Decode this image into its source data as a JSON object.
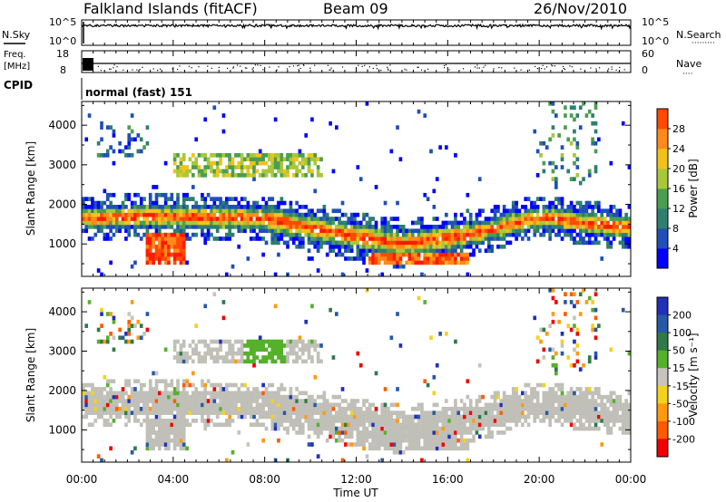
{
  "header": {
    "station": "Falkland Islands (fitACF)",
    "beam": "Beam 09",
    "date": "26/Nov/2010"
  },
  "strips": {
    "nsky_label": "N.Sky",
    "nsearch_label": "N.Search",
    "nsearch_dots": "·········",
    "freq_label": "Freq.",
    "freq_unit": "[MHz]",
    "nave_label": "Nave",
    "nave_dots": "····",
    "cpid_label": "CPID",
    "cpid_value": "normal (fast) 151"
  },
  "colors": {
    "power_scale": [
      "#0000ff",
      "#1f4fb8",
      "#2e7f6e",
      "#4a9e50",
      "#a8c83a",
      "#f2c21c",
      "#ff8a1a",
      "#ff4a00",
      "#ff1a00"
    ],
    "velocity_scale": [
      "#2030b8",
      "#2858a8",
      "#2e7a48",
      "#55b02a",
      "#c6c4bc",
      "#f4d21a",
      "#ff9a10",
      "#ff5a00",
      "#f00000"
    ],
    "ground_scatter": "#c0c0b8"
  },
  "chart_data": [
    {
      "type": "line",
      "panel": "N.Sky / N.Search",
      "ylabel_left": "N.Sky",
      "ylabel_right": "N.Search",
      "left_ticks": [
        "10^5",
        "10^0"
      ],
      "right_ticks": [
        "10^5",
        "10^0"
      ],
      "series": [
        {
          "name": "",
          "values": []
        }
      ]
    },
    {
      "type": "scatter",
      "panel": "Freq / Nave",
      "ylabel_left": "Freq. [MHz]",
      "ylabel_right": "Nave",
      "left_ticks": [
        "18",
        "8"
      ],
      "right_ticks": [
        "60",
        "0"
      ],
      "ylim_left": [
        8,
        18
      ],
      "ylim_right": [
        0,
        60
      ]
    },
    {
      "type": "heatmap",
      "panel": "Power",
      "ylabel": "Slant Range [km]",
      "y_ticks": [
        1000,
        2000,
        3000,
        4000
      ],
      "ylim": [
        180,
        4600
      ],
      "colorbar_label": "Power [dB]",
      "colorbar_ticks": [
        4,
        8,
        12,
        16,
        20,
        24,
        28
      ]
    },
    {
      "type": "heatmap",
      "panel": "Velocity",
      "ylabel": "Slant Range [km]",
      "y_ticks": [
        1000,
        2000,
        3000,
        4000
      ],
      "ylim": [
        180,
        4600
      ],
      "colorbar_label": "Velocity [m s⁻¹]",
      "colorbar_ticks": [
        200,
        100,
        50,
        15,
        -15,
        -50,
        -100,
        -200
      ]
    }
  ],
  "time_axis": {
    "xlabel": "Time UT",
    "ticks": [
      "00:00",
      "04:00",
      "08:00",
      "12:00",
      "16:00",
      "20:00",
      "00:00"
    ],
    "xlim_hours": [
      0,
      24
    ]
  }
}
